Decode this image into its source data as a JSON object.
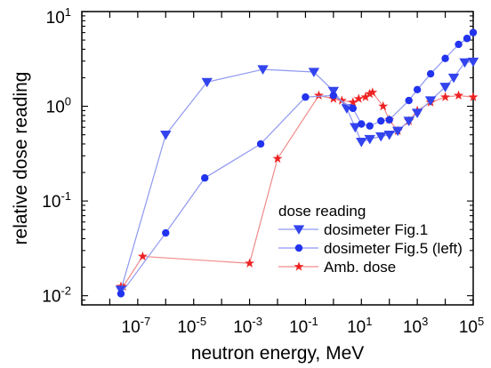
{
  "chart_data": {
    "type": "line",
    "title": "",
    "xlabel": "neutron energy, MeV",
    "ylabel": "relative dose reading",
    "xscale": "log",
    "yscale": "log",
    "xlim": [
      1e-09,
      100000
    ],
    "ylim": [
      0.008,
      10
    ],
    "grid": false,
    "x_ticks": [
      {
        "value": 1e-07,
        "base": "10",
        "exp": "-7"
      },
      {
        "value": 1e-05,
        "base": "10",
        "exp": "-5"
      },
      {
        "value": 0.001,
        "base": "10",
        "exp": "-3"
      },
      {
        "value": 0.1,
        "base": "10",
        "exp": "-1"
      },
      {
        "value": 10,
        "base": "10",
        "exp": "1"
      },
      {
        "value": 1000,
        "base": "10",
        "exp": "3"
      },
      {
        "value": 100000,
        "base": "10",
        "exp": "5"
      }
    ],
    "y_ticks": [
      {
        "value": 0.01,
        "base": "10",
        "exp": "-2"
      },
      {
        "value": 0.1,
        "base": "10",
        "exp": "-1"
      },
      {
        "value": 1,
        "base": "10",
        "exp": "0"
      },
      {
        "value": 10,
        "base": "10",
        "exp": "1"
      }
    ],
    "legend": {
      "title": "dose reading",
      "position": "bottom-right"
    },
    "series": [
      {
        "name": "dosimeter Fig.1",
        "marker": "triangle-down",
        "color": "#3344ee",
        "line_color": "#8f98f0",
        "points": [
          [
            2.5e-08,
            0.0115
          ],
          [
            1e-06,
            0.5
          ],
          [
            3e-05,
            1.8
          ],
          [
            0.003,
            2.45
          ],
          [
            0.2,
            2.3
          ],
          [
            1,
            1.45
          ],
          [
            3,
            0.95
          ],
          [
            6,
            0.6
          ],
          [
            10,
            0.42
          ],
          [
            20,
            0.45
          ],
          [
            50,
            0.48
          ],
          [
            100,
            0.5
          ],
          [
            200,
            0.55
          ],
          [
            500,
            0.7
          ],
          [
            1000,
            0.85
          ],
          [
            3000,
            1.15
          ],
          [
            10000,
            1.6
          ],
          [
            20000,
            2.0
          ],
          [
            50000,
            2.9
          ],
          [
            100000,
            2.95
          ]
        ]
      },
      {
        "name": "dosimeter Fig.5 (left)",
        "marker": "circle",
        "color": "#2233ee",
        "line_color": "#8f98f0",
        "points": [
          [
            2.5e-08,
            0.0105
          ],
          [
            1e-06,
            0.046
          ],
          [
            2.5e-05,
            0.175
          ],
          [
            0.0025,
            0.4
          ],
          [
            0.1,
            1.25
          ],
          [
            1,
            1.3
          ],
          [
            5,
            0.95
          ],
          [
            10,
            0.65
          ],
          [
            20,
            0.62
          ],
          [
            50,
            0.7
          ],
          [
            100,
            0.72
          ],
          [
            500,
            1.15
          ],
          [
            1000,
            1.5
          ],
          [
            3000,
            2.2
          ],
          [
            10000,
            3.2
          ],
          [
            30000,
            4.5
          ],
          [
            60000,
            5.2
          ],
          [
            100000,
            6.0
          ]
        ]
      },
      {
        "name": "Amb. dose",
        "marker": "star",
        "color": "#ee2222",
        "line_color": "#f08a8a",
        "points": [
          [
            2.5e-08,
            0.0125
          ],
          [
            3e-08,
            0.0125
          ],
          [
            1.5e-07,
            0.026
          ],
          [
            0.001,
            0.022
          ],
          [
            0.01,
            0.28
          ],
          [
            0.3,
            1.3
          ],
          [
            1,
            1.2
          ],
          [
            2,
            1.15
          ],
          [
            5,
            1.1
          ],
          [
            8,
            1.2
          ],
          [
            14,
            1.25
          ],
          [
            20,
            1.35
          ],
          [
            25,
            1.4
          ],
          [
            60,
            1.0
          ],
          [
            100,
            0.72
          ],
          [
            200,
            0.55
          ],
          [
            500,
            0.7
          ],
          [
            1000,
            0.9
          ],
          [
            3000,
            1.1
          ],
          [
            10000,
            1.25
          ],
          [
            30000,
            1.3
          ],
          [
            100000,
            1.25
          ]
        ]
      }
    ]
  }
}
